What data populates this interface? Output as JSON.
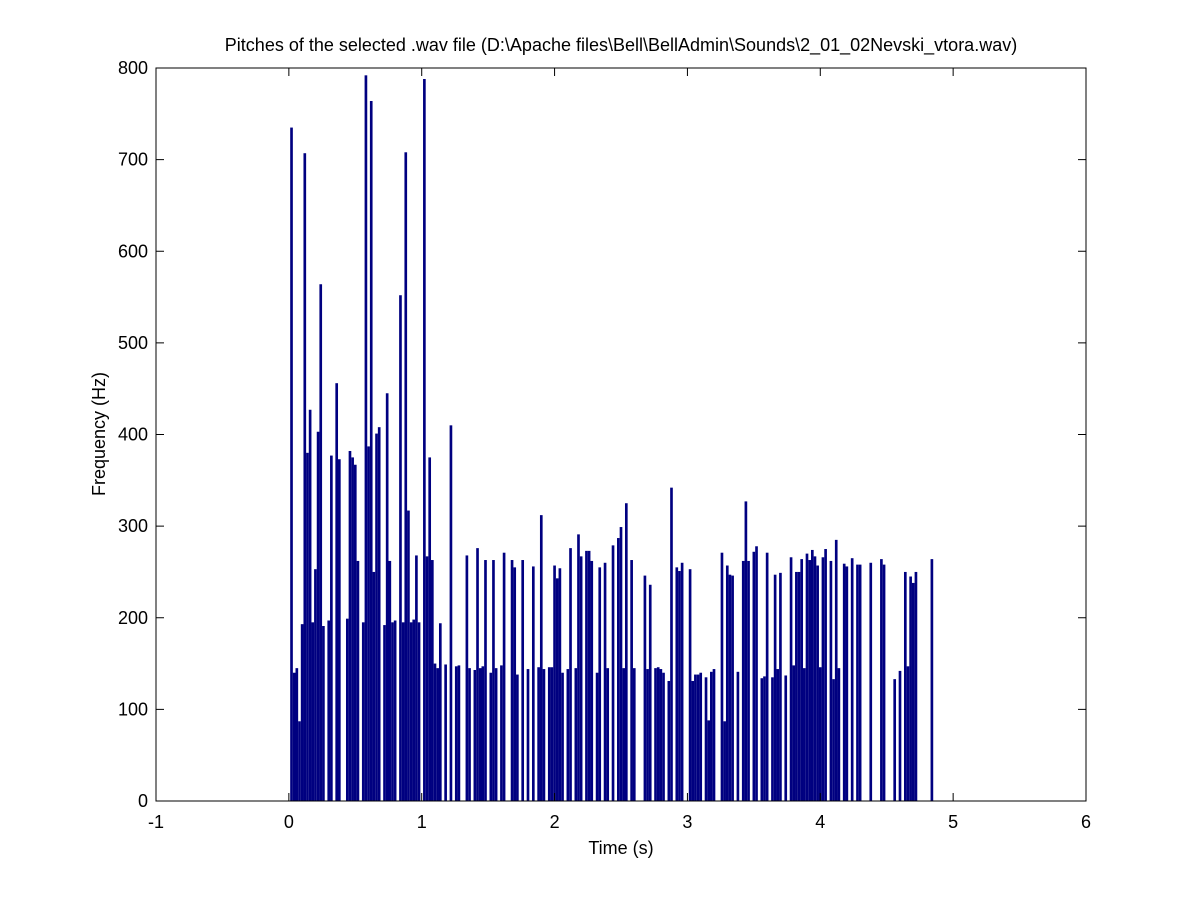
{
  "chart_data": {
    "type": "bar",
    "title": "Pitches of the selected .wav file (D:\\Apache files\\Bell\\BellAdmin\\Sounds\\2_01_02Nevski_vtora.wav)",
    "xlabel": "Time (s)",
    "ylabel": "Frequency (Hz)",
    "xlim": [
      -1,
      6
    ],
    "ylim": [
      0,
      800
    ],
    "xticks": [
      -1,
      0,
      1,
      2,
      3,
      4,
      5,
      6
    ],
    "xtick_labels": [
      "-1",
      "0",
      "1",
      "2",
      "3",
      "4",
      "5",
      "6"
    ],
    "yticks": [
      0,
      100,
      200,
      300,
      400,
      500,
      600,
      700,
      800
    ],
    "ytick_labels": [
      "0",
      "100",
      "200",
      "300",
      "400",
      "500",
      "600",
      "700",
      "800"
    ],
    "bar_width": 0.02,
    "grid": false,
    "bar_color": "#000080",
    "x_start": 0.0,
    "x_step": 0.02,
    "values": [
      0,
      735,
      140,
      145,
      87,
      193,
      707,
      380,
      427,
      195,
      253,
      403,
      564,
      191,
      0,
      197,
      377,
      0,
      456,
      373,
      0,
      0,
      199,
      382,
      375,
      367,
      262,
      0,
      195,
      792,
      387,
      764,
      250,
      401,
      408,
      0,
      192,
      445,
      262,
      195,
      197,
      0,
      552,
      195,
      708,
      317,
      195,
      198,
      268,
      195,
      0,
      788,
      267,
      375,
      263,
      150,
      145,
      194,
      0,
      149,
      0,
      410,
      0,
      147,
      148,
      0,
      0,
      268,
      145,
      0,
      143,
      276,
      145,
      147,
      263,
      0,
      140,
      263,
      145,
      0,
      148,
      271,
      0,
      0,
      263,
      255,
      138,
      0,
      263,
      0,
      144,
      0,
      256,
      0,
      146,
      312,
      144,
      0,
      146,
      146,
      257,
      243,
      254,
      140,
      0,
      144,
      276,
      0,
      145,
      291,
      267,
      0,
      273,
      273,
      262,
      0,
      140,
      255,
      0,
      260,
      145,
      0,
      279,
      0,
      287,
      299,
      145,
      325,
      0,
      263,
      145,
      0,
      0,
      0,
      246,
      144,
      236,
      0,
      145,
      146,
      144,
      140,
      0,
      131,
      342,
      0,
      255,
      251,
      260,
      0,
      0,
      253,
      131,
      138,
      138,
      140,
      0,
      135,
      88,
      141,
      144,
      0,
      0,
      271,
      87,
      257,
      247,
      246,
      0,
      141,
      0,
      262,
      327,
      262,
      0,
      272,
      278,
      0,
      134,
      136,
      271,
      0,
      135,
      247,
      144,
      249,
      0,
      137,
      0,
      266,
      148,
      250,
      250,
      264,
      145,
      270,
      263,
      274,
      267,
      257,
      146,
      266,
      275,
      0,
      262,
      133,
      285,
      145,
      0,
      259,
      256,
      0,
      265,
      0,
      258,
      258,
      0,
      0,
      0,
      260,
      0,
      0,
      0,
      264,
      258,
      0,
      0,
      0,
      133,
      0,
      142,
      0,
      250,
      147,
      245,
      238,
      250,
      0,
      0,
      0,
      0,
      0,
      264,
      0,
      0,
      0,
      0,
      0,
      0,
      0,
      0,
      0,
      0,
      0,
      0,
      0,
      0,
      0,
      0,
      0
    ]
  }
}
